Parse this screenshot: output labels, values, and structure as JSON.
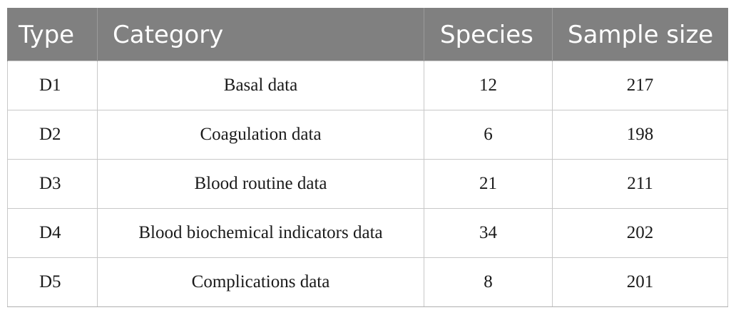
{
  "table": {
    "headers": {
      "type": "Type",
      "category": "Category",
      "species": "Species",
      "sample_size": "Sample size"
    },
    "rows": [
      {
        "type": "D1",
        "category": "Basal data",
        "species": "12",
        "sample_size": "217"
      },
      {
        "type": "D2",
        "category": "Coagulation data",
        "species": "6",
        "sample_size": "198"
      },
      {
        "type": "D3",
        "category": "Blood routine data",
        "species": "21",
        "sample_size": "211"
      },
      {
        "type": "D4",
        "category": "Blood biochemical indicators data",
        "species": "34",
        "sample_size": "202"
      },
      {
        "type": "D5",
        "category": "Complications data",
        "species": "8",
        "sample_size": "201"
      }
    ],
    "colors": {
      "header_background": "#808080",
      "header_text": "#ffffff",
      "grid_line": "#c8c8c8"
    }
  }
}
